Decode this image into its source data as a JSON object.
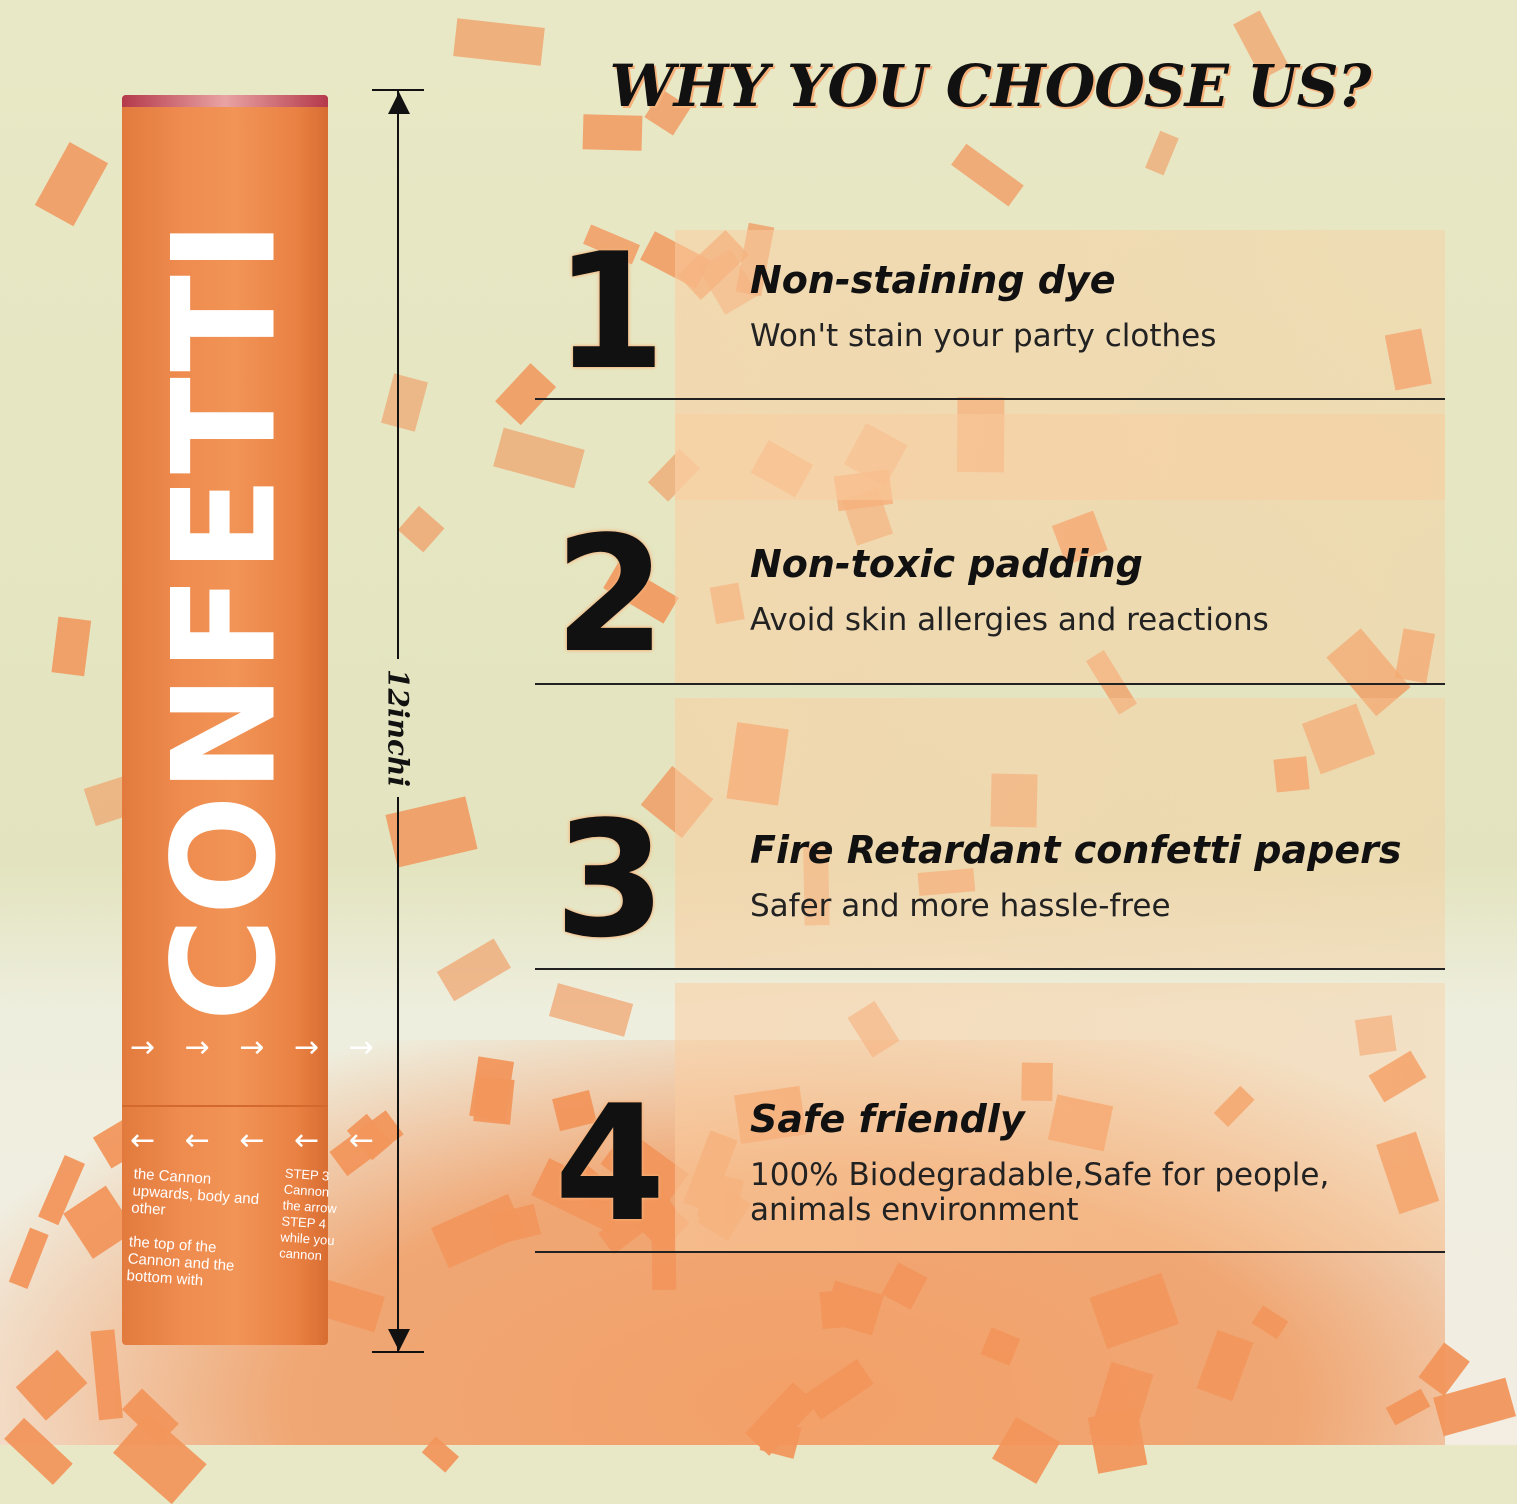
{
  "headline": "WHY YOU CHOOSE US?",
  "product": {
    "brand_text": "CONFETTI",
    "instructions_left": "the Cannon upwards, body and other\n\nthe top of the Cannon and the bottom with",
    "instructions_right": "STEP 3\nCannon\nthe arrow\nSTEP 4\nwhile you\ncannon",
    "color": "#ef8c4f"
  },
  "measurement": {
    "label": "12inchi"
  },
  "features": [
    {
      "number": "1",
      "title": "Non-staining dye",
      "description": "Won't stain your party clothes"
    },
    {
      "number": "2",
      "title": "Non-toxic padding",
      "description": "Avoid skin allergies and reactions"
    },
    {
      "number": "3",
      "title": "Fire Retardant confetti papers",
      "description": "Safer and more hassle-free"
    },
    {
      "number": "4",
      "title": "Safe friendly",
      "description": "100% Biodegradable,Safe for people, animals environment"
    }
  ],
  "colors": {
    "accent": "#f1965c",
    "text": "#111111",
    "background": "#e6e6c4"
  }
}
